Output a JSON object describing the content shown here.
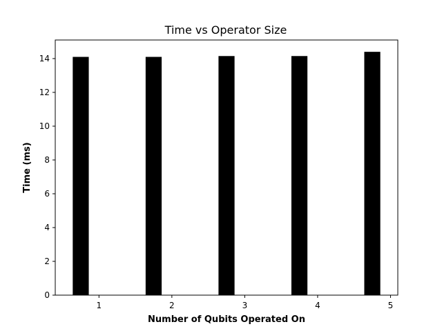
{
  "chart_data": {
    "type": "bar",
    "title": "Time vs Operator Size",
    "xlabel": "Number of Qubits Operated On",
    "ylabel": "Time (ms)",
    "x": [
      1,
      2,
      3,
      4,
      5
    ],
    "values": [
      14.1,
      14.1,
      14.15,
      14.15,
      14.4
    ],
    "xlim": [
      0.4,
      5.1
    ],
    "ylim": [
      0,
      15.1
    ],
    "xticks": [
      1,
      2,
      3,
      4,
      5
    ],
    "yticks": [
      0,
      2,
      4,
      6,
      8,
      10,
      12,
      14
    ],
    "bar_width": 0.22,
    "bar_offset": -0.25,
    "bar_color": "#000000",
    "grid": false,
    "legend": "none"
  }
}
